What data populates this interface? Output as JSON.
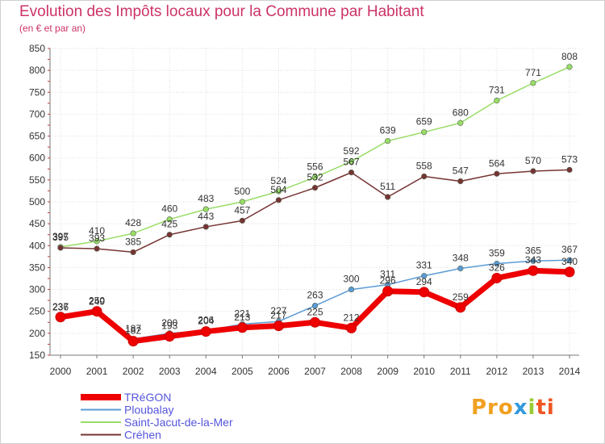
{
  "page": {
    "title": "Evolution des Impôts locaux pour la Commune par Habitant",
    "subtitle": "(en € et par an)"
  },
  "logo": {
    "parts": [
      "Pro",
      "x",
      "i",
      "ti"
    ],
    "colors": [
      "#f0a020",
      "#3399dd",
      "#99cc33",
      "#ee5522"
    ]
  },
  "chart_data": {
    "type": "line",
    "x": [
      "2000",
      "2001",
      "2002",
      "2003",
      "2004",
      "2005",
      "2006",
      "2007",
      "2008",
      "2009",
      "2010",
      "2011",
      "2012",
      "2013",
      "2014"
    ],
    "ylim": [
      150,
      850
    ],
    "yticks": [
      150,
      200,
      250,
      300,
      350,
      400,
      450,
      500,
      550,
      600,
      650,
      700,
      750,
      800,
      850
    ],
    "grid": true,
    "legend_position": "bottom-left",
    "series": [
      {
        "name": "TRéGON",
        "color": "#ee0000",
        "values": [
          237,
          250,
          182,
          193,
          204,
          213,
          217,
          225,
          212,
          296,
          294,
          259,
          326,
          343,
          340
        ],
        "labels": [
          "237",
          "250",
          "182",
          "193",
          "204",
          "213",
          "217",
          "225",
          "212",
          "",
          "294",
          "259",
          "326",
          "343",
          "340"
        ]
      },
      {
        "name": "Ploubalay",
        "color": "#5b9bd5",
        "values": [
          236,
          249,
          187,
          200,
          206,
          221,
          227,
          263,
          300,
          311,
          331,
          348,
          359,
          365,
          367
        ],
        "labels": [
          "236",
          "249",
          "187",
          "200",
          "206",
          "221",
          "227",
          "263",
          "300",
          "311",
          "331",
          "348",
          "359",
          "365",
          "367"
        ]
      },
      {
        "name": "Saint-Jacut-de-la-Mer",
        "color": "#99dd66",
        "values": [
          397,
          410,
          428,
          460,
          483,
          500,
          524,
          556,
          592,
          639,
          659,
          680,
          731,
          771,
          808
        ],
        "labels": [
          "397",
          "410",
          "428",
          "460",
          "483",
          "500",
          "524",
          "556",
          "592",
          "639",
          "659",
          "680",
          "731",
          "771",
          "808"
        ]
      },
      {
        "name": "Créhen",
        "color": "#773333",
        "values": [
          395,
          393,
          385,
          425,
          443,
          457,
          504,
          532,
          567,
          511,
          558,
          547,
          564,
          570,
          573
        ],
        "labels": [
          "395",
          "393",
          "385",
          "425",
          "443",
          "457",
          "504",
          "532",
          "567",
          "511",
          "558",
          "547",
          "564",
          "570",
          "573"
        ]
      }
    ],
    "extra_labels": [
      {
        "series": 0,
        "index": 9,
        "text": "296"
      }
    ]
  }
}
